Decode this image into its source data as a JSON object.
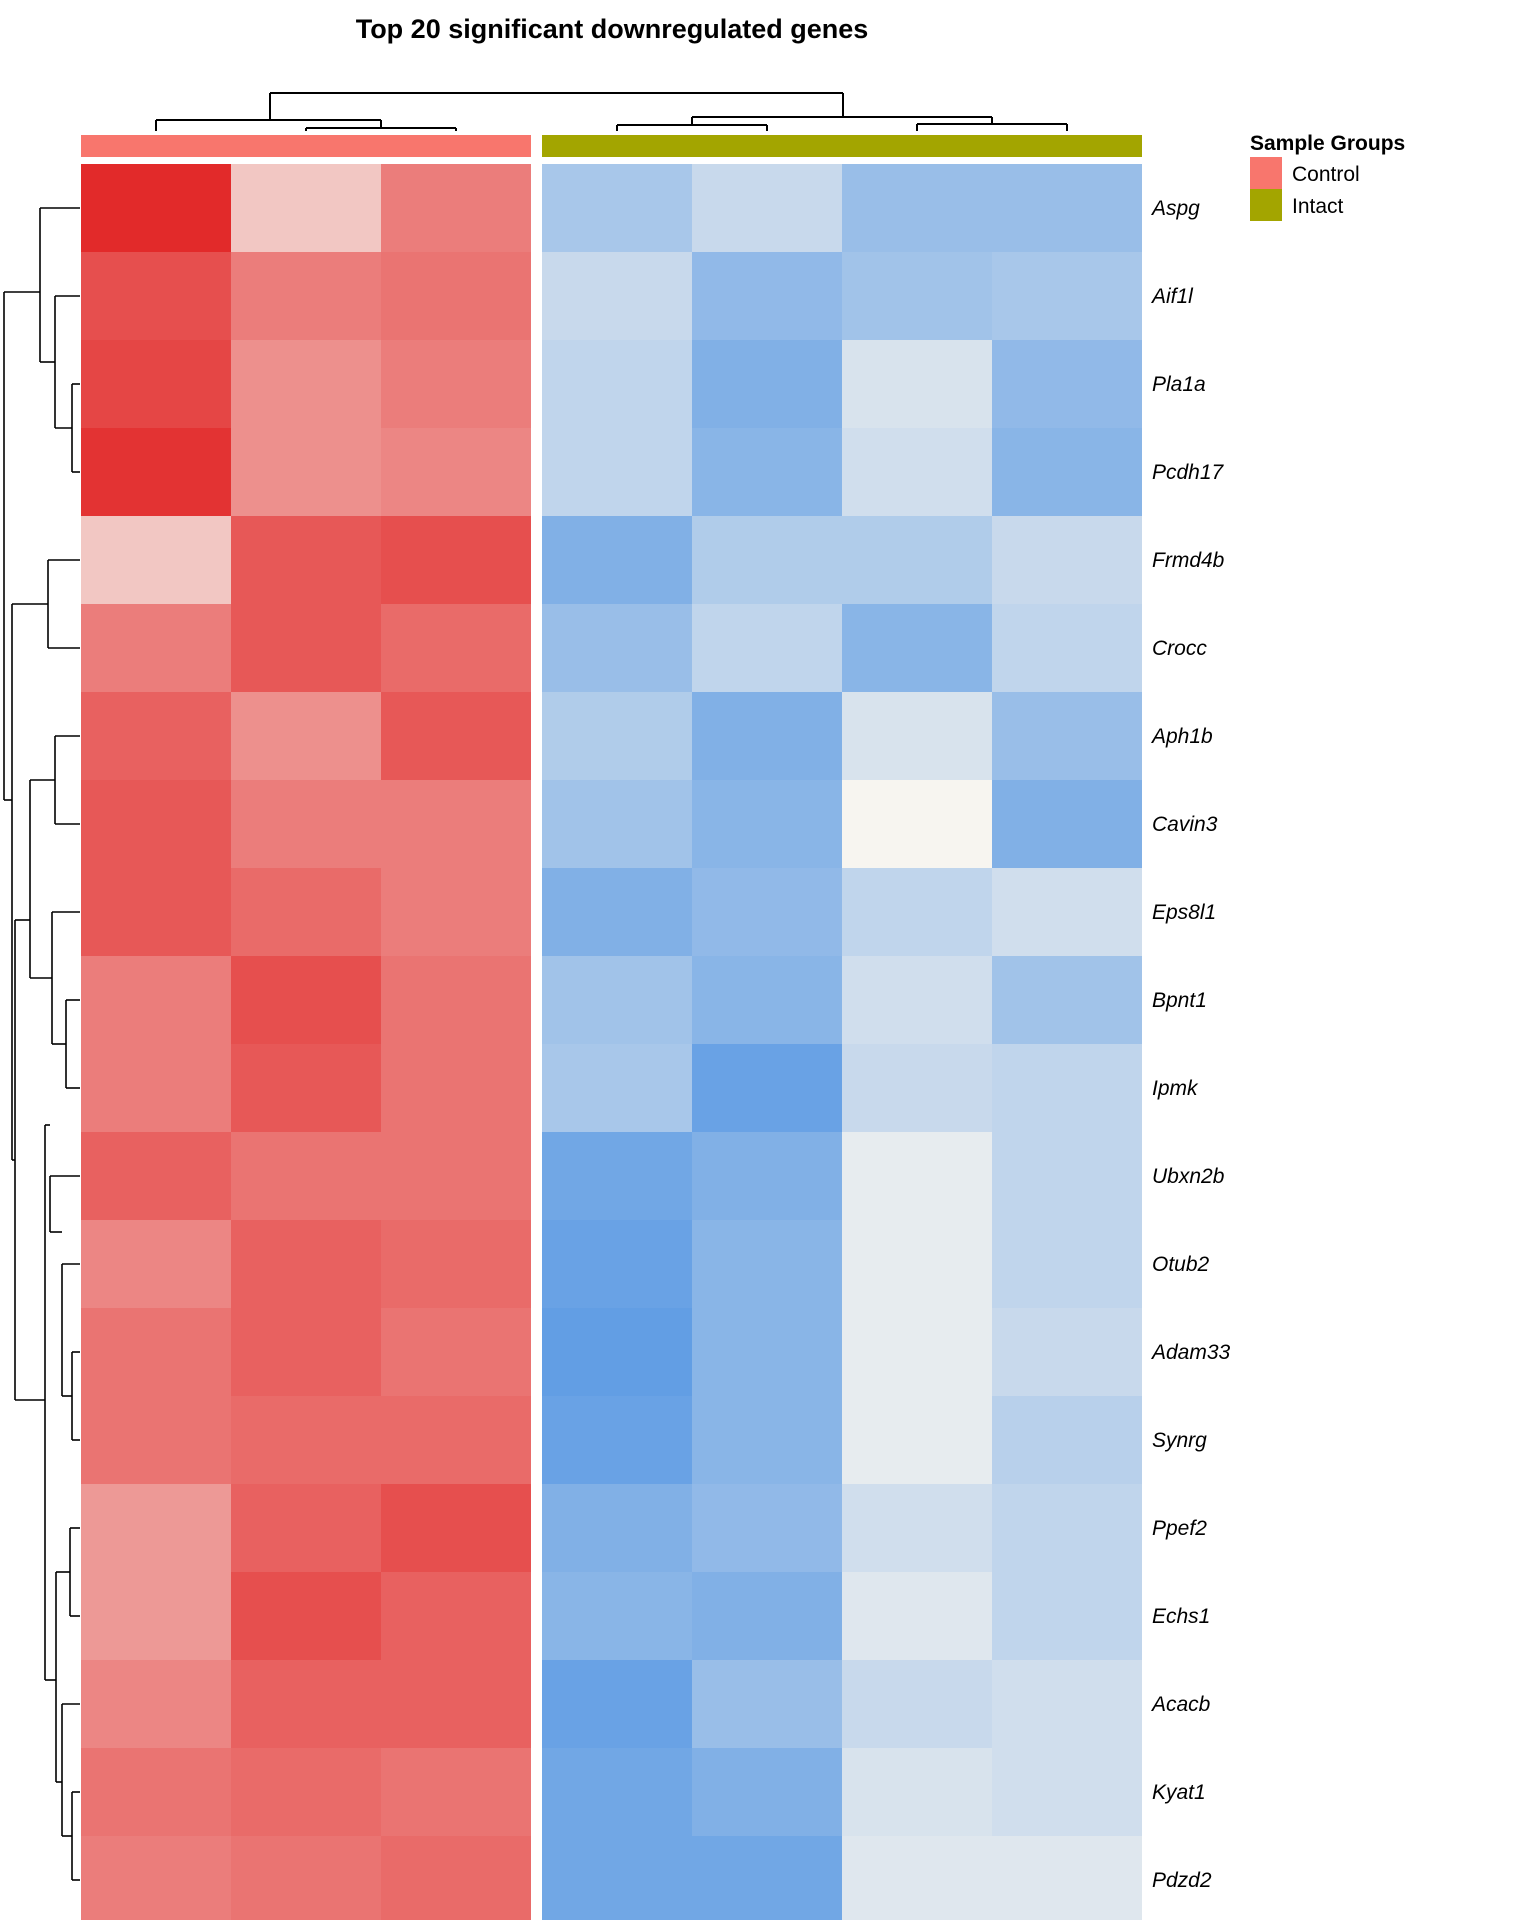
{
  "chart_data": {
    "type": "heatmap",
    "title": "Top 20 significant downregulated genes",
    "genes": [
      "Aspg",
      "Aif1l",
      "Pla1a",
      "Pcdh17",
      "Frmd4b",
      "Crocc",
      "Aph1b",
      "Cavin3",
      "Eps8l1",
      "Bpnt1",
      "Ipmk",
      "Ubxn2b",
      "Otub2",
      "Adam33",
      "Synrg",
      "Ppef2",
      "Echs1",
      "Acacb",
      "Kyat1",
      "Pdzd2"
    ],
    "samples": [
      {
        "group": "Control"
      },
      {
        "group": "Control"
      },
      {
        "group": "Control"
      },
      {
        "group": "Intact"
      },
      {
        "group": "Intact"
      },
      {
        "group": "Intact"
      },
      {
        "group": "Intact"
      }
    ],
    "values": [
      [
        2.2,
        0.5,
        1.3,
        -1.0,
        -0.6,
        -1.2,
        -1.2
      ],
      [
        1.8,
        1.3,
        1.4,
        -0.6,
        -1.3,
        -1.1,
        -1.0
      ],
      [
        1.9,
        1.1,
        1.3,
        -0.7,
        -1.5,
        -0.4,
        -1.3
      ],
      [
        2.1,
        1.1,
        1.2,
        -0.7,
        -1.4,
        -0.5,
        -1.4
      ],
      [
        0.5,
        1.7,
        1.8,
        -1.5,
        -0.9,
        -0.9,
        -0.6
      ],
      [
        1.3,
        1.7,
        1.5,
        -1.2,
        -0.7,
        -1.4,
        -0.7
      ],
      [
        1.6,
        1.1,
        1.7,
        -0.9,
        -1.5,
        -0.4,
        -1.2
      ],
      [
        1.7,
        1.3,
        1.3,
        -1.1,
        -1.4,
        0.0,
        -1.5
      ],
      [
        1.7,
        1.5,
        1.3,
        -1.5,
        -1.3,
        -0.7,
        -0.5
      ],
      [
        1.3,
        1.8,
        1.4,
        -1.1,
        -1.4,
        -0.5,
        -1.1
      ],
      [
        1.3,
        1.7,
        1.4,
        -1.0,
        -1.8,
        -0.6,
        -0.7
      ],
      [
        1.6,
        1.4,
        1.4,
        -1.7,
        -1.5,
        -0.2,
        -0.7
      ],
      [
        1.2,
        1.6,
        1.5,
        -1.8,
        -1.4,
        -0.2,
        -0.7
      ],
      [
        1.4,
        1.6,
        1.4,
        -1.9,
        -1.4,
        -0.2,
        -0.6
      ],
      [
        1.4,
        1.5,
        1.5,
        -1.8,
        -1.4,
        -0.2,
        -0.8
      ],
      [
        1.0,
        1.6,
        1.8,
        -1.5,
        -1.3,
        -0.5,
        -0.7
      ],
      [
        1.0,
        1.8,
        1.6,
        -1.4,
        -1.5,
        -0.3,
        -0.7
      ],
      [
        1.2,
        1.6,
        1.6,
        -1.8,
        -1.2,
        -0.6,
        -0.5
      ],
      [
        1.4,
        1.5,
        1.4,
        -1.7,
        -1.5,
        -0.4,
        -0.5
      ],
      [
        1.3,
        1.4,
        1.5,
        -1.7,
        -1.7,
        -0.3,
        -0.3
      ]
    ],
    "color_scale": {
      "low": "#4a90e2",
      "mid": "#f7f5f0",
      "high": "#e22a2a",
      "range": [
        -2.2,
        2.2
      ]
    },
    "legend": {
      "title": "Sample Groups",
      "position": "top-right",
      "items": [
        {
          "label": "Control",
          "color": "#f8766d"
        },
        {
          "label": "Intact",
          "color": "#a3a500"
        }
      ]
    }
  }
}
